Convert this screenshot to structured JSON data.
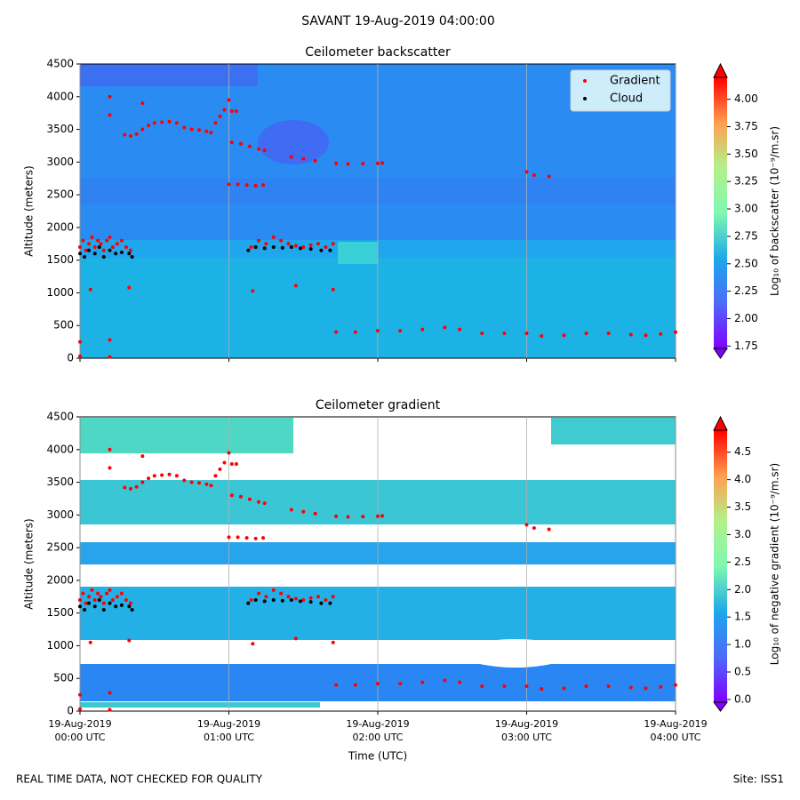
{
  "suptitle": "SAVANT 19-Aug-2019 04:00:00",
  "footer_left": "REAL TIME DATA, NOT CHECKED FOR QUALITY",
  "footer_right": "Site: ISS1",
  "chart_data": [
    {
      "type": "scatter",
      "title": "Ceilometer backscatter",
      "y_label": "Altitude (meters)",
      "legend": "upper right",
      "grid": true,
      "xlim": [
        0,
        4
      ],
      "ylim": [
        0,
        4500
      ],
      "yticks": [
        0,
        500,
        1000,
        1500,
        2000,
        2500,
        3000,
        3500,
        4000,
        4500
      ],
      "colorbar": {
        "label": "Log₁₀ of backscatter (10⁻⁹/m.sr)",
        "lim": [
          1.72,
          4.2
        ],
        "ticks": [
          1.75,
          {
            "value": 2,
            "label": "2.00"
          },
          2.25,
          {
            "value": 2.5,
            "label": "2.50"
          },
          2.75,
          {
            "value": 3,
            "label": "3.00"
          },
          3.25,
          {
            "value": 3.5,
            "label": "3.50"
          },
          3.75,
          {
            "value": 4,
            "label": "4.00"
          }
        ]
      },
      "series": [
        {
          "name": "Gradient",
          "color": "#ff0000",
          "x": [
            0,
            0.02,
            0.04,
            0.06,
            0.08,
            0.1,
            0.12,
            0.14,
            0.16,
            0.18,
            0.2,
            0.22,
            0.25,
            0.28,
            0.31,
            0.34,
            0,
            0,
            0.07,
            0.2,
            0.2,
            0.2,
            0.2,
            0.33,
            0.42,
            0.3,
            0.34,
            0.38,
            0.42,
            0.46,
            0.5,
            0.55,
            0.6,
            0.65,
            0.7,
            0.75,
            0.8,
            0.85,
            0.88,
            0.91,
            0.94,
            0.97,
            1,
            1.02,
            1.05,
            1,
            1.06,
            1.12,
            1.18,
            1.23,
            1.02,
            1.08,
            1.14,
            1.2,
            1.24,
            1.15,
            1.2,
            1.25,
            1.3,
            1.35,
            1.4,
            1.45,
            1.5,
            1.55,
            1.6,
            1.65,
            1.7,
            1.16,
            1.45,
            1.7,
            1.42,
            1.5,
            1.58,
            1.72,
            1.8,
            1.9,
            2,
            2.03,
            1.72,
            1.85,
            2,
            2.15,
            2.3,
            2.45,
            2.55,
            2.7,
            2.85,
            3,
            3.1,
            3.25,
            3.4,
            3.55,
            3.7,
            3.8,
            3.9,
            4,
            3,
            3.05,
            3.15
          ],
          "values": [
            1700,
            1800,
            1650,
            1750,
            1850,
            1700,
            1800,
            1750,
            1650,
            1800,
            1850,
            1700,
            1750,
            1800,
            1700,
            1650,
            250,
            30,
            1050,
            280,
            20,
            3720,
            4000,
            1080,
            3900,
            3420,
            3400,
            3430,
            3500,
            3560,
            3600,
            3610,
            3620,
            3600,
            3530,
            3500,
            3490,
            3470,
            3450,
            3600,
            3700,
            3800,
            3950,
            3780,
            3780,
            2660,
            2660,
            2650,
            2640,
            2650,
            3300,
            3280,
            3240,
            3200,
            3180,
            1700,
            1800,
            1750,
            1850,
            1800,
            1750,
            1720,
            1700,
            1730,
            1750,
            1700,
            1750,
            1030,
            1110,
            1050,
            3080,
            3050,
            3020,
            2980,
            2970,
            2975,
            2980,
            2985,
            400,
            400,
            420,
            420,
            440,
            470,
            440,
            380,
            380,
            380,
            340,
            350,
            380,
            380,
            360,
            350,
            370,
            400,
            2850,
            2800,
            2780
          ]
        },
        {
          "name": "Cloud",
          "color": "#000000",
          "x": [
            0,
            0.03,
            0.06,
            0.1,
            0.13,
            0.16,
            0.2,
            0.24,
            0.28,
            0.33,
            0.35,
            1.13,
            1.18,
            1.24,
            1.3,
            1.36,
            1.42,
            1.48,
            1.55,
            1.62,
            1.68
          ],
          "values": [
            1600,
            1550,
            1650,
            1600,
            1700,
            1550,
            1650,
            1600,
            1620,
            1600,
            1550,
            1650,
            1700,
            1680,
            1700,
            1690,
            1700,
            1680,
            1670,
            1650,
            1650
          ]
        }
      ]
    },
    {
      "type": "scatter",
      "title": "Ceilometer gradient",
      "y_label": "Altitude (meters)",
      "x_label": "Time (UTC)",
      "grid": true,
      "xlim": [
        0,
        4
      ],
      "ylim": [
        0,
        4500
      ],
      "yticks": [
        0,
        500,
        1000,
        1500,
        2000,
        2500,
        3000,
        3500,
        4000,
        4500
      ],
      "xticks": [
        {
          "value": 0,
          "label": [
            "19-Aug-2019",
            "00:00 UTC"
          ]
        },
        {
          "value": 1,
          "label": [
            "19-Aug-2019",
            "01:00 UTC"
          ]
        },
        {
          "value": 2,
          "label": [
            "19-Aug-2019",
            "02:00 UTC"
          ]
        },
        {
          "value": 3,
          "label": [
            "19-Aug-2019",
            "03:00 UTC"
          ]
        },
        {
          "value": 4,
          "label": [
            "19-Aug-2019",
            "04:00 UTC"
          ]
        }
      ],
      "colorbar": {
        "label": "Log₁₀ of negative gradient (10⁻⁹/m.sr)",
        "lim": [
          -0.05,
          4.9
        ],
        "ticks": [
          {
            "value": 0,
            "label": "0.0"
          },
          0.5,
          {
            "value": 1,
            "label": "1.0"
          },
          1.5,
          {
            "value": 2,
            "label": "2.0"
          },
          2.5,
          {
            "value": 3,
            "label": "3.0"
          },
          3.5,
          {
            "value": 4,
            "label": "4.0"
          },
          4.5
        ]
      },
      "series": [
        {
          "name": "Gradient",
          "color": "#ff0000",
          "x": [
            0,
            0.02,
            0.04,
            0.06,
            0.08,
            0.1,
            0.12,
            0.14,
            0.16,
            0.18,
            0.2,
            0.22,
            0.25,
            0.28,
            0.31,
            0.34,
            0,
            0,
            0.07,
            0.2,
            0.2,
            0.2,
            0.2,
            0.33,
            0.42,
            0.3,
            0.34,
            0.38,
            0.42,
            0.46,
            0.5,
            0.55,
            0.6,
            0.65,
            0.7,
            0.75,
            0.8,
            0.85,
            0.88,
            0.91,
            0.94,
            0.97,
            1,
            1.02,
            1.05,
            1,
            1.06,
            1.12,
            1.18,
            1.23,
            1.02,
            1.08,
            1.14,
            1.2,
            1.24,
            1.15,
            1.2,
            1.25,
            1.3,
            1.35,
            1.4,
            1.45,
            1.5,
            1.55,
            1.6,
            1.65,
            1.7,
            1.16,
            1.45,
            1.7,
            1.42,
            1.5,
            1.58,
            1.72,
            1.8,
            1.9,
            2,
            2.03,
            1.72,
            1.85,
            2,
            2.15,
            2.3,
            2.45,
            2.55,
            2.7,
            2.85,
            3,
            3.1,
            3.25,
            3.4,
            3.55,
            3.7,
            3.8,
            3.9,
            4,
            3,
            3.05,
            3.15
          ],
          "values": [
            1700,
            1800,
            1650,
            1750,
            1850,
            1700,
            1800,
            1750,
            1650,
            1800,
            1850,
            1700,
            1750,
            1800,
            1700,
            1650,
            250,
            30,
            1050,
            280,
            20,
            3720,
            4000,
            1080,
            3900,
            3420,
            3400,
            3430,
            3500,
            3560,
            3600,
            3610,
            3620,
            3600,
            3530,
            3500,
            3490,
            3470,
            3450,
            3600,
            3700,
            3800,
            3950,
            3780,
            3780,
            2660,
            2660,
            2650,
            2640,
            2650,
            3300,
            3280,
            3240,
            3200,
            3180,
            1700,
            1800,
            1750,
            1850,
            1800,
            1750,
            1720,
            1700,
            1730,
            1750,
            1700,
            1750,
            1030,
            1110,
            1050,
            3080,
            3050,
            3020,
            2980,
            2970,
            2975,
            2980,
            2985,
            400,
            400,
            420,
            420,
            440,
            470,
            440,
            380,
            380,
            380,
            340,
            350,
            380,
            380,
            360,
            350,
            370,
            400,
            2850,
            2800,
            2780
          ]
        },
        {
          "name": "Cloud",
          "color": "#000000",
          "x": [
            0,
            0.03,
            0.06,
            0.1,
            0.13,
            0.16,
            0.2,
            0.24,
            0.28,
            0.33,
            0.35,
            1.13,
            1.18,
            1.24,
            1.3,
            1.36,
            1.42,
            1.48,
            1.55,
            1.62,
            1.68
          ],
          "values": [
            1600,
            1550,
            1650,
            1600,
            1700,
            1550,
            1650,
            1600,
            1620,
            1600,
            1550,
            1650,
            1700,
            1680,
            1700,
            1690,
            1700,
            1680,
            1670,
            1650,
            1650
          ]
        }
      ]
    }
  ]
}
